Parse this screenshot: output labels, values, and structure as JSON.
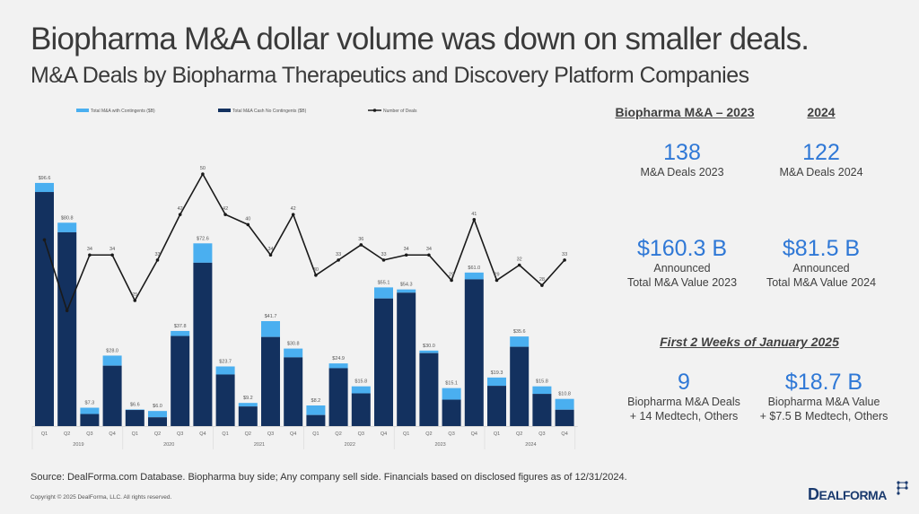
{
  "title": "Biopharma M&A dollar volume was down on smaller deals.",
  "subtitle": "M&A Deals by Biopharma Therapeutics and Discovery Platform Companies",
  "colors": {
    "with_contingents": "#4aaff0",
    "cash_no_contingents": "#13315f",
    "deals_line": "#1a1a1a",
    "accent_blue": "#2f78d6"
  },
  "chart_data": {
    "type": "bar",
    "title": "",
    "xlabel": "",
    "ylabel": "",
    "legend": {
      "placement": "top",
      "entries": [
        "Total M&A with Contingents ($B)",
        "Total M&A Cash No Contingents ($B)",
        "Number of Deals"
      ]
    },
    "categories": [
      "Q1",
      "Q2",
      "Q3",
      "Q4",
      "Q1",
      "Q2",
      "Q3",
      "Q4",
      "Q1",
      "Q2",
      "Q3",
      "Q4",
      "Q1",
      "Q2",
      "Q3",
      "Q4",
      "Q1",
      "Q2",
      "Q3",
      "Q4",
      "Q1",
      "Q2",
      "Q3",
      "Q4"
    ],
    "years": [
      "2019",
      "2020",
      "2021",
      "2022",
      "2023",
      "2024"
    ],
    "series": [
      {
        "name": "Total M&A with Contingents ($B)",
        "type": "bar",
        "values": [
          96.6,
          80.8,
          7.3,
          28.0,
          6.6,
          6.0,
          37.8,
          72.6,
          23.7,
          9.2,
          41.7,
          30.8,
          8.2,
          24.9,
          15.8,
          55.1,
          54.3,
          30.0,
          15.1,
          61.0,
          19.3,
          35.6,
          15.8,
          10.8
        ]
      },
      {
        "name": "Total M&A Cash No Contingents ($B)",
        "type": "bar",
        "values": [
          93.0,
          77.0,
          4.8,
          24.0,
          6.4,
          3.5,
          35.8,
          64.9,
          20.5,
          7.8,
          35.4,
          27.3,
          4.4,
          23.0,
          13.0,
          50.7,
          53.0,
          29.0,
          10.5,
          58.3,
          16.0,
          31.5,
          12.8,
          6.5
        ]
      },
      {
        "name": "Number of Deals",
        "type": "line",
        "values": [
          37,
          23,
          34,
          34,
          25,
          33,
          42,
          50,
          42,
          40,
          34,
          42,
          30,
          33,
          36,
          33,
          34,
          34,
          29,
          41,
          29,
          32,
          28,
          33
        ],
        "labels": [
          "",
          "",
          "34",
          "34",
          "25",
          "33",
          "42",
          "50",
          "42",
          "40",
          "34",
          "42",
          "30",
          "33",
          "36",
          "33",
          "34",
          "34",
          "29",
          "41",
          "29",
          "32",
          "28",
          "33"
        ]
      }
    ],
    "bar_labels": [
      "$96.6",
      "$80.8",
      "$7.3",
      "$28.0",
      "$6.6",
      "$6.0",
      "$37.8",
      "$72.6",
      "$23.7",
      "$9.2",
      "$41.7",
      "$30.8",
      "$8.2",
      "$24.9",
      "$15.8",
      "$55.1",
      "$54.3",
      "$30.0",
      "$15.1",
      "$61.0",
      "$19.3",
      "$35.6",
      "$15.8",
      "$10.8"
    ],
    "ylim": [
      0,
      100
    ],
    "y2lim": [
      0,
      50
    ],
    "grid": false
  },
  "panel": {
    "header_2023": "Biopharma M&A – 2023",
    "header_2024": "2024",
    "deals_2023": "138",
    "deals_2023_caption": "M&A Deals 2023",
    "deals_2024": "122",
    "deals_2024_caption": "M&A Deals 2024",
    "value_2023": "$160.3 B",
    "value_2023_caption_1": "Announced",
    "value_2023_caption_2": "Total M&A Value 2023",
    "value_2024": "$81.5 B",
    "value_2024_caption_1": "Announced",
    "value_2024_caption_2": "Total M&A Value 2024",
    "jan_header": "First 2 Weeks of January 2025",
    "jan_deals": "9",
    "jan_deals_caption_1": "Biopharma M&A Deals",
    "jan_deals_caption_2": "+ 14 Medtech, Others",
    "jan_value": "$18.7 B",
    "jan_value_caption_1": "Biopharma M&A Value",
    "jan_value_caption_2": "+ $7.5 B Medtech, Others"
  },
  "footer": {
    "source": "Source: DealForma.com Database. Biopharma buy side; Any company sell side. Financials based on disclosed figures as of 12/31/2024.",
    "copyright": "Copyright © 2025 DealForma, LLC. All rights reserved.",
    "logo_d": "D",
    "logo_rest": "EALFORMA"
  }
}
